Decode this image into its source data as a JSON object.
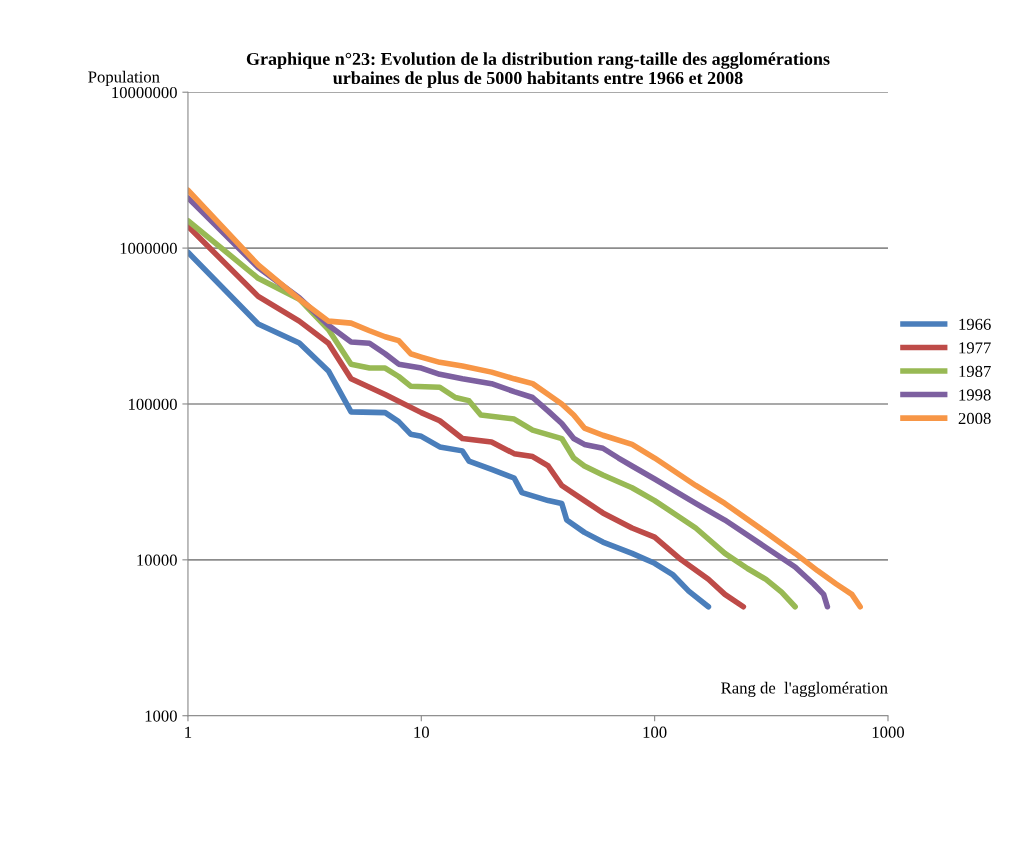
{
  "chart_data": {
    "type": "line",
    "title": "Graphique n°23: Evolution de la distribution rang-taille des agglomérations\nurbaines de plus de 5000 habitants entre 1966 et 2008",
    "xlabel": "Rang de  l'agglomération",
    "ylabel": "Population",
    "log": "xy",
    "grid": "y",
    "legend": "right",
    "marker": "none",
    "line_style": "solid",
    "xlim": [
      1,
      1000
    ],
    "xticks": [
      1,
      10,
      100,
      1000
    ],
    "ylim": [
      1000,
      10000000
    ],
    "yticks": [
      1000,
      10000,
      100000,
      1000000,
      10000000
    ],
    "series": [
      {
        "name": "1966",
        "color": "#4a7ebb",
        "x": [
          1,
          2,
          3,
          4,
          5,
          7,
          8,
          9,
          10,
          12,
          15,
          16,
          20,
          25,
          27,
          35,
          40,
          42,
          50,
          60,
          80,
          100,
          120,
          140,
          170
        ],
        "values": [
          940000,
          326000,
          246000,
          163000,
          89000,
          88000,
          77000,
          64000,
          62000,
          53000,
          50000,
          43000,
          38000,
          33500,
          27000,
          24000,
          23000,
          18000,
          15000,
          13000,
          11000,
          9500,
          8000,
          6300,
          5000
        ]
      },
      {
        "name": "1977",
        "color": "#be4b48",
        "x": [
          1,
          2,
          3,
          4,
          5,
          7,
          10,
          12,
          15,
          20,
          25,
          30,
          35,
          40,
          50,
          60,
          80,
          100,
          130,
          170,
          200,
          240
        ],
        "values": [
          1380000,
          490000,
          340000,
          245000,
          145000,
          115000,
          88000,
          78000,
          60000,
          57000,
          48000,
          46000,
          40000,
          30000,
          24000,
          20000,
          16000,
          14000,
          10000,
          7500,
          6000,
          5000
        ]
      },
      {
        "name": "1987",
        "color": "#98b954",
        "x": [
          1,
          2,
          3,
          4,
          5,
          6,
          7,
          8,
          9,
          12,
          14,
          16,
          18,
          25,
          30,
          40,
          45,
          50,
          60,
          80,
          100,
          150,
          200,
          250,
          300,
          350,
          400
        ],
        "values": [
          1500000,
          640000,
          470000,
          300000,
          180000,
          170000,
          170000,
          150000,
          130000,
          128000,
          110000,
          105000,
          85000,
          80000,
          68000,
          60000,
          45000,
          40000,
          35000,
          29000,
          24000,
          16000,
          11000,
          8800,
          7500,
          6200,
          5000
        ]
      },
      {
        "name": "1998",
        "color": "#7d60a0",
        "x": [
          1,
          2,
          3,
          4,
          5,
          6,
          7,
          8,
          10,
          12,
          15,
          20,
          25,
          30,
          35,
          40,
          45,
          50,
          60,
          70,
          80,
          100,
          150,
          200,
          300,
          400,
          480,
          530,
          550
        ],
        "values": [
          2100000,
          750000,
          480000,
          320000,
          250000,
          245000,
          210000,
          180000,
          170000,
          155000,
          145000,
          135000,
          120000,
          110000,
          90000,
          75000,
          60000,
          55000,
          52000,
          45000,
          40000,
          33000,
          23000,
          18000,
          12000,
          9000,
          7000,
          6000,
          5000
        ]
      },
      {
        "name": "2008",
        "color": "#f79646",
        "x": [
          1,
          2,
          3,
          4,
          5,
          6,
          7,
          8,
          9,
          10,
          12,
          15,
          20,
          25,
          30,
          35,
          40,
          45,
          50,
          60,
          80,
          100,
          150,
          200,
          300,
          400,
          500,
          600,
          700,
          760
        ],
        "values": [
          2350000,
          780000,
          470000,
          340000,
          330000,
          295000,
          270000,
          255000,
          210000,
          200000,
          185000,
          175000,
          160000,
          145000,
          135000,
          115000,
          100000,
          85000,
          70000,
          63000,
          55000,
          45000,
          30000,
          23000,
          15000,
          11000,
          8500,
          7000,
          6000,
          5000
        ]
      }
    ]
  }
}
